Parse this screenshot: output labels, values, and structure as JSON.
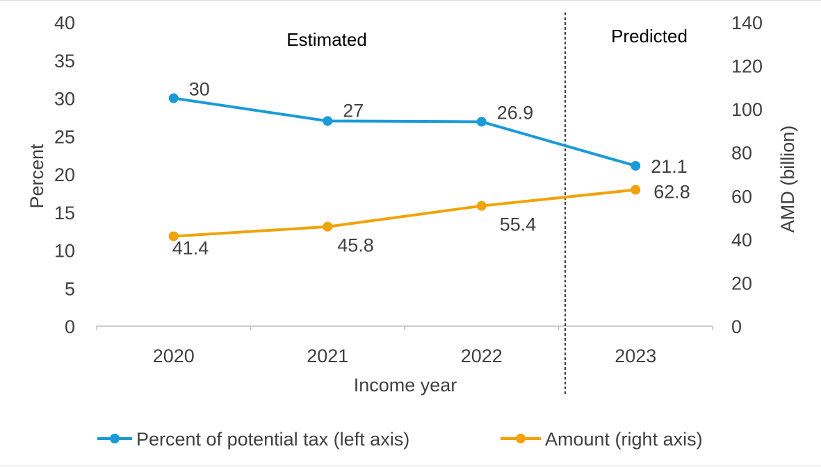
{
  "chart_data": {
    "type": "line",
    "categories": [
      "2020",
      "2021",
      "2022",
      "2023"
    ],
    "xlabel": "Income year",
    "ylabel_left": "Percent",
    "ylabel_right": "AMD (billion)",
    "ylim_left": [
      0,
      40
    ],
    "ylim_right": [
      0,
      140
    ],
    "yticks_left": [
      "0",
      "5",
      "10",
      "15",
      "20",
      "25",
      "30",
      "35",
      "40"
    ],
    "yticks_right": [
      "0",
      "20",
      "40",
      "60",
      "80",
      "100",
      "120",
      "140"
    ],
    "grid": false,
    "legend_position": "bottom",
    "annotations": {
      "estimated": "Estimated",
      "predicted": "Predicted"
    },
    "series": [
      {
        "name": "Percent of potential tax (left axis)",
        "axis": "left",
        "color": "#1a9bd7",
        "values": [
          30,
          27,
          26.9,
          21.1
        ],
        "labels": [
          "30",
          "27",
          "26.9",
          "21.1"
        ]
      },
      {
        "name": "Amount (right axis)",
        "axis": "right",
        "color": "#f0a30a",
        "values": [
          41.4,
          45.8,
          55.4,
          62.8
        ],
        "labels": [
          "41.4",
          "45.8",
          "55.4",
          "62.8"
        ]
      }
    ]
  }
}
